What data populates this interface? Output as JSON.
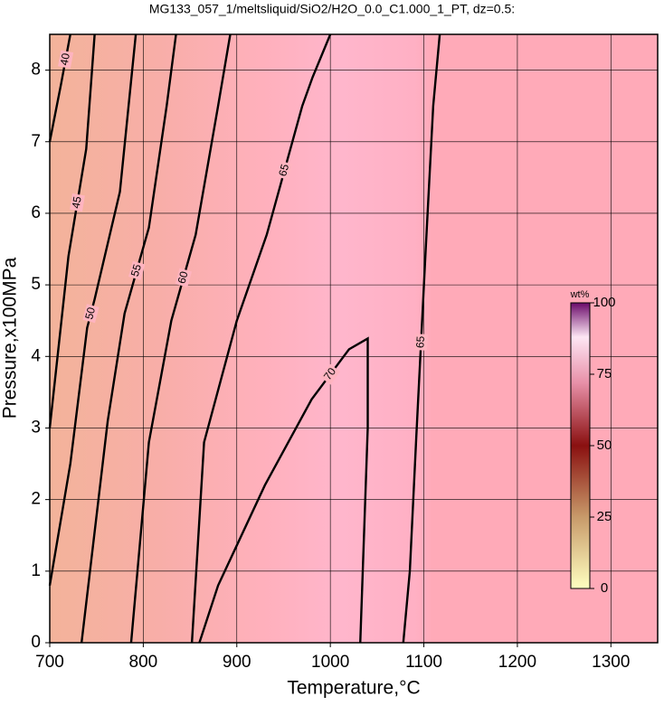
{
  "chart_data": {
    "type": "contour",
    "title": "MG133_057_1/meltsliquid/SiO2/H2O_0.0_C1.000_1_PT, dz=0.5:",
    "x_label": "Temperature,°C",
    "y_label": "Pressure,x100MPa",
    "xlim": [
      700,
      1350
    ],
    "ylim": [
      0,
      8.5
    ],
    "xticks": [
      700,
      800,
      900,
      1000,
      1100,
      1200,
      1300
    ],
    "yticks": [
      0,
      1,
      2,
      3,
      4,
      5,
      6,
      7,
      8
    ],
    "grid": true,
    "line_color": "#000000",
    "contours": [
      {
        "level": 40,
        "x": [
          700,
          712,
          722
        ],
        "y": [
          7.0,
          7.8,
          8.5
        ]
      },
      {
        "level": 45,
        "x": [
          700,
          720,
          739,
          748
        ],
        "y": [
          3.0,
          5.4,
          6.9,
          8.5
        ]
      },
      {
        "level": 50,
        "x": [
          700,
          722,
          740,
          748,
          775,
          792
        ],
        "y": [
          0.8,
          2.5,
          4.4,
          4.8,
          6.3,
          8.5
        ]
      },
      {
        "level": 55,
        "x": [
          734,
          762,
          780,
          806,
          825,
          835
        ],
        "y": [
          0,
          3.1,
          4.6,
          5.8,
          7.5,
          8.5
        ]
      },
      {
        "level": 60,
        "x": [
          787,
          806,
          830,
          856,
          880,
          893
        ],
        "y": [
          0,
          2.8,
          4.5,
          5.7,
          7.5,
          8.5
        ]
      },
      {
        "level": 65,
        "x": [
          852,
          865,
          900,
          932,
          970,
          981,
          1000
        ],
        "y": [
          0,
          2.8,
          4.5,
          5.7,
          7.5,
          7.9,
          8.5
        ]
      },
      {
        "level": 70,
        "x": [
          860,
          880,
          930,
          980,
          1020,
          1040,
          1040,
          1032
        ],
        "y": [
          0,
          0.8,
          2.2,
          3.4,
          4.1,
          4.25,
          3.0,
          0
        ]
      },
      {
        "level": 65,
        "x": [
          1078,
          1085,
          1092,
          1102,
          1110,
          1117
        ],
        "y": [
          0,
          1.0,
          2.9,
          5.5,
          7.5,
          8.5
        ]
      }
    ],
    "colorbar": {
      "label": "wt%",
      "lim": [
        0,
        100
      ],
      "ticks": [
        0,
        25,
        50,
        75,
        100
      ]
    }
  }
}
